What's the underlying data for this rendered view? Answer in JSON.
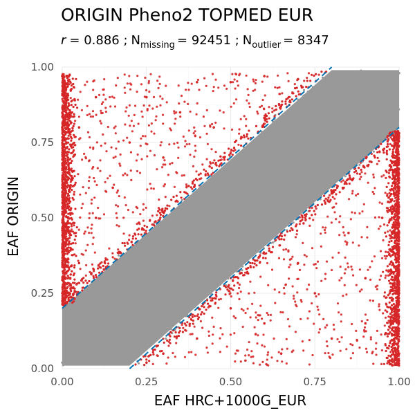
{
  "chart_data": {
    "type": "scatter",
    "title": "ORIGIN Pheno2 TOPMED EUR",
    "subtitle": {
      "r_label": "r",
      "r_value": "= 0.886 ;",
      "missing_label": "N",
      "missing_sub": "missing",
      "missing_value": "= 92451 ;",
      "outlier_label": "N",
      "outlier_sub": "outlier",
      "outlier_value": "= 8347"
    },
    "xlabel": "EAF HRC+1000G_EUR",
    "ylabel": "EAF ORIGIN",
    "xlim": [
      0,
      1
    ],
    "ylim": [
      0,
      1
    ],
    "xticks": [
      "0.00",
      "0.25",
      "0.50",
      "0.75",
      "1.00"
    ],
    "yticks": [
      "0.00",
      "0.25",
      "0.50",
      "0.75",
      "1.00"
    ],
    "grid": true,
    "n_outlier": 8347,
    "n_missing": 92451,
    "r": 0.886,
    "reference_lines": [
      {
        "slope": 1,
        "intercept": 0.2
      },
      {
        "slope": 1,
        "intercept": -0.2
      }
    ],
    "series": [
      {
        "color": "#999999",
        "x": [
          0.0,
          0.05,
          0.1,
          0.15,
          0.2,
          0.25,
          0.3,
          0.35,
          0.4,
          0.45,
          0.5,
          0.55,
          0.6,
          0.65,
          0.7,
          0.75,
          0.8,
          0.85,
          0.9,
          0.95,
          1.0
        ],
        "y": [
          0.02,
          0.05,
          0.1,
          0.15,
          0.2,
          0.25,
          0.3,
          0.35,
          0.4,
          0.45,
          0.5,
          0.55,
          0.6,
          0.65,
          0.7,
          0.75,
          0.8,
          0.85,
          0.9,
          0.95,
          0.98
        ]
      },
      {
        "color": "#d62728",
        "x": [
          0.0,
          0.0,
          0.0,
          0.0,
          0.0,
          0.05,
          0.05,
          0.1,
          0.1,
          0.15,
          0.2,
          0.25,
          0.3,
          0.35,
          0.4,
          0.45,
          0.5,
          0.6,
          0.7,
          0.25,
          0.3,
          0.4,
          0.5,
          0.6,
          0.7,
          0.8,
          0.9,
          1.0,
          1.0,
          1.0,
          1.0,
          1.0,
          0.95,
          0.9,
          0.85,
          0.75,
          0.65
        ],
        "y": [
          0.25,
          0.4,
          0.6,
          0.8,
          0.97,
          0.35,
          0.8,
          0.5,
          0.9,
          0.6,
          0.75,
          0.9,
          0.7,
          0.85,
          0.95,
          0.8,
          0.95,
          0.97,
          0.96,
          0.02,
          0.05,
          0.1,
          0.2,
          0.15,
          0.35,
          0.1,
          0.3,
          0.05,
          0.25,
          0.45,
          0.6,
          0.78,
          0.5,
          0.15,
          0.45,
          0.25,
          0.05
        ]
      }
    ]
  }
}
